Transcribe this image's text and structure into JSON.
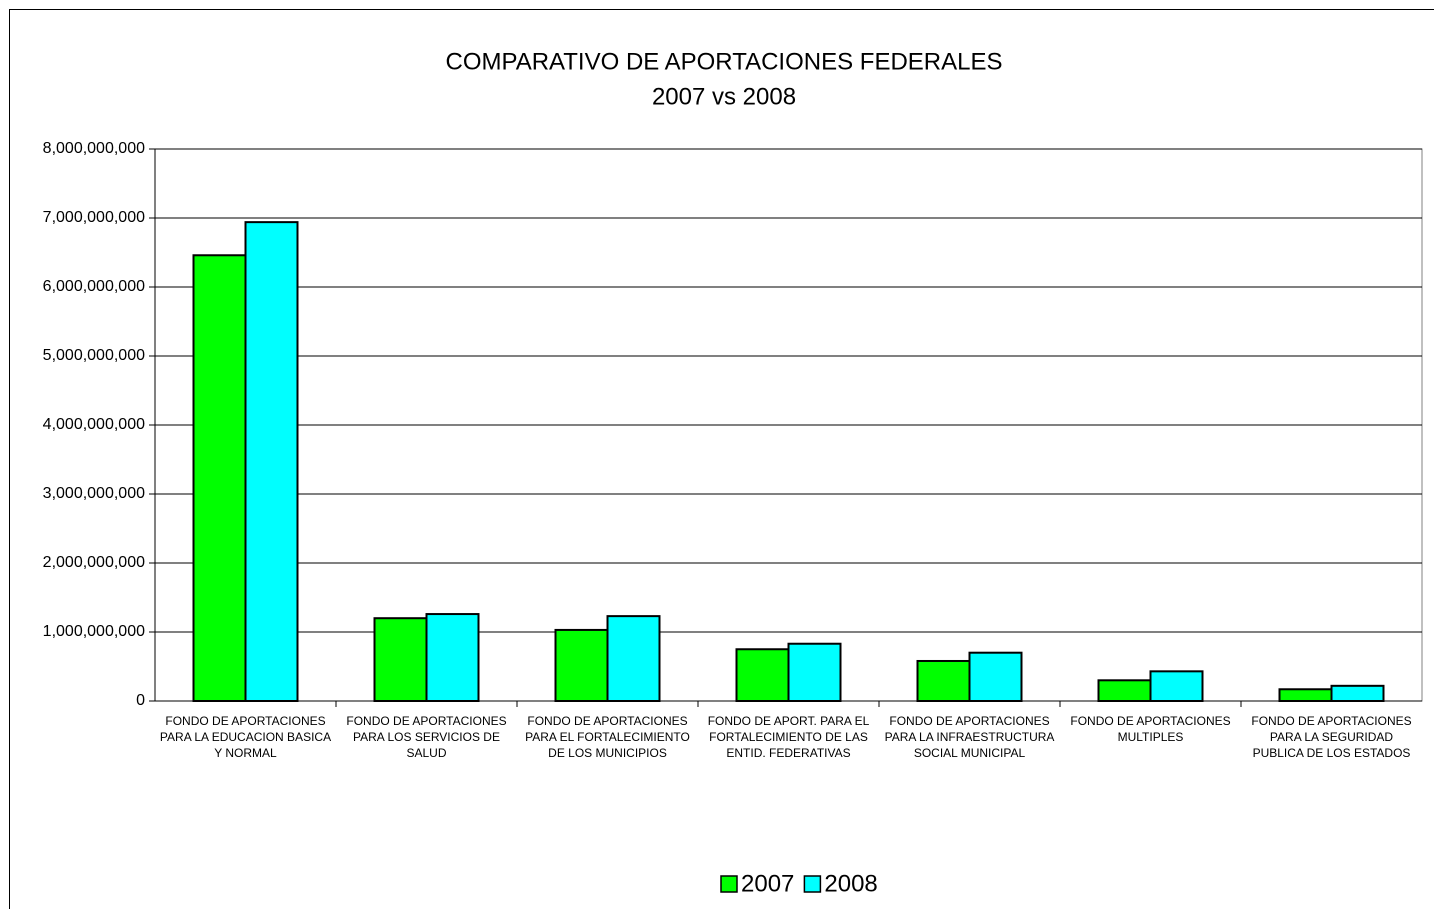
{
  "chart_data": {
    "type": "bar",
    "title": "COMPARATIVO DE APORTACIONES FEDERALES",
    "subtitle": "2007 vs 2008",
    "categories": [
      "FONDO DE APORTACIONES PARA LA EDUCACION BASICA Y NORMAL",
      "FONDO DE APORTACIONES PARA LOS SERVICIOS DE SALUD",
      "FONDO DE APORTACIONES PARA EL FORTALECIMIENTO DE LOS MUNICIPIOS",
      "FONDO DE APORT. PARA EL FORTALECIMIENTO DE LAS ENTID. FEDERATIVAS",
      "FONDO DE APORTACIONES PARA LA INFRAESTRUCTURA SOCIAL MUNICIPAL",
      "FONDO DE APORTACIONES MULTIPLES",
      "FONDO DE APORTACIONES PARA LA SEGURIDAD PUBLICA DE LOS ESTADOS"
    ],
    "series": [
      {
        "name": "2007",
        "color": "#00ff00",
        "values": [
          6460000000,
          1200000000,
          1030000000,
          750000000,
          580000000,
          300000000,
          170000000
        ]
      },
      {
        "name": "2008",
        "color": "#00ffff",
        "values": [
          6940000000,
          1260000000,
          1230000000,
          830000000,
          700000000,
          430000000,
          220000000
        ]
      }
    ],
    "ylim": [
      0,
      8000000000
    ],
    "yticks": [
      0,
      {
        "value": 1000000000,
        "label": "1,000,000,000"
      },
      {
        "value": 2000000000,
        "label": "2,000,000,000"
      },
      {
        "value": 3000000000,
        "label": "3,000,000,000"
      },
      {
        "value": 4000000000,
        "label": "4,000,000,000"
      },
      {
        "value": 5000000000,
        "label": "5,000,000,000"
      },
      {
        "value": 6000000000,
        "label": "6,000,000,000"
      },
      {
        "value": 7000000000,
        "label": "7,000,000,000"
      },
      {
        "value": 8000000000,
        "label": "8,000,000,000"
      }
    ],
    "grid": true,
    "legend": "bottom"
  }
}
